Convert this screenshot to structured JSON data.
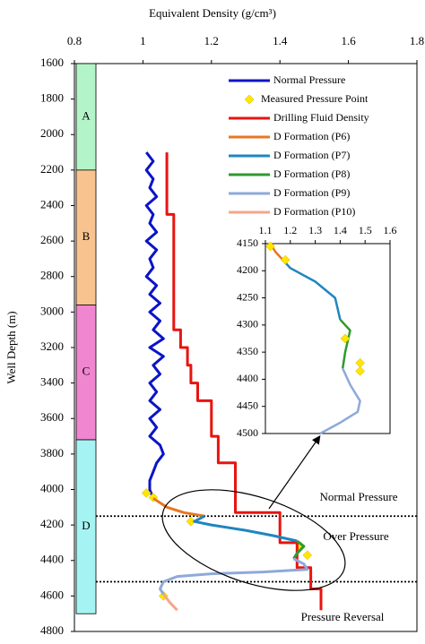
{
  "chart_data": [
    {
      "type": "line",
      "x_label": "Equivalent Density (g/cm³)",
      "y_label": "Well Depth (m)",
      "xlim": [
        0.8,
        1.8
      ],
      "xticks": [
        0.8,
        1,
        1.2,
        1.4,
        1.6,
        1.8
      ],
      "ylim": [
        1600,
        4800
      ],
      "yticks": [
        1600,
        1800,
        2000,
        2200,
        2400,
        2600,
        2800,
        3000,
        3200,
        3400,
        3600,
        3800,
        4000,
        4200,
        4400,
        4600,
        4800
      ],
      "y_inverted": true,
      "formations": [
        {
          "label": "A",
          "top": 1600,
          "bottom": 2200,
          "color": "#b3f5c8"
        },
        {
          "label": "B",
          "top": 2200,
          "bottom": 2960,
          "color": "#f9c38f"
        },
        {
          "label": "C",
          "top": 2960,
          "bottom": 3720,
          "color": "#ef86cf"
        },
        {
          "label": "D",
          "top": 3720,
          "bottom": 4700,
          "color": "#a6f3f3"
        }
      ],
      "boundaries": [
        4150,
        4520
      ],
      "annotations": [
        "Normal Pressure",
        "Over Pressure",
        "Pressure Reversal"
      ],
      "series": [
        {
          "name": "Normal Pressure",
          "color": "#0a14c8",
          "mode": "line",
          "depth": [
            2100,
            2150,
            2200,
            2250,
            2300,
            2350,
            2400,
            2450,
            2500,
            2550,
            2600,
            2650,
            2700,
            2750,
            2800,
            2850,
            2900,
            2950,
            3000,
            3050,
            3100,
            3150,
            3200,
            3250,
            3300,
            3350,
            3400,
            3450,
            3500,
            3550,
            3600,
            3650,
            3700,
            3750,
            3800,
            3850,
            3900,
            3950,
            4000,
            4050
          ],
          "values": [
            1.01,
            1.03,
            1.01,
            1.03,
            1.02,
            1.04,
            1.01,
            1.03,
            1.02,
            1.04,
            1.01,
            1.04,
            1.02,
            1.03,
            1.01,
            1.04,
            1.02,
            1.05,
            1.02,
            1.05,
            1.03,
            1.06,
            1.02,
            1.06,
            1.03,
            1.05,
            1.02,
            1.04,
            1.02,
            1.05,
            1.02,
            1.04,
            1.02,
            1.05,
            1.06,
            1.04,
            1.03,
            1.02,
            1.02,
            1.03
          ]
        },
        {
          "name": "Measured Pressure Point",
          "color": "#ffe600",
          "mode": "markers",
          "depth": [
            4020,
            4045,
            4180,
            4320,
            4370,
            4600
          ],
          "values": [
            1.01,
            1.03,
            1.14,
            1.46,
            1.48,
            1.06
          ]
        },
        {
          "name": "Drilling Fluid Density",
          "color": "#e8140f",
          "mode": "line",
          "depth": [
            2100,
            2450,
            2450,
            3100,
            3100,
            3200,
            3200,
            3300,
            3300,
            3400,
            3400,
            3500,
            3500,
            3700,
            3700,
            3850,
            3850,
            4130,
            4130,
            4300,
            4300,
            4440,
            4440,
            4560,
            4560,
            4680
          ],
          "values": [
            1.07,
            1.07,
            1.09,
            1.09,
            1.11,
            1.11,
            1.13,
            1.13,
            1.14,
            1.14,
            1.16,
            1.16,
            1.2,
            1.2,
            1.22,
            1.22,
            1.27,
            1.27,
            1.4,
            1.4,
            1.45,
            1.45,
            1.49,
            1.49,
            1.52,
            1.52
          ]
        },
        {
          "name": "D Formation (P6)",
          "color": "#e87722",
          "mode": "line",
          "depth": [
            4050,
            4100,
            4130,
            4150
          ],
          "values": [
            1.03,
            1.07,
            1.12,
            1.18
          ]
        },
        {
          "name": "D Formation (P7)",
          "color": "#1f86bf",
          "mode": "line",
          "depth": [
            4150,
            4180,
            4200,
            4230,
            4260,
            4290
          ],
          "values": [
            1.18,
            1.15,
            1.2,
            1.3,
            1.38,
            1.45
          ]
        },
        {
          "name": "D Formation (P8)",
          "color": "#2e9a2e",
          "mode": "line",
          "depth": [
            4290,
            4320,
            4360,
            4390
          ],
          "values": [
            1.45,
            1.47,
            1.45,
            1.44
          ]
        },
        {
          "name": "D Formation (P9)",
          "color": "#8ea9d9",
          "mode": "line",
          "depth": [
            4390,
            4420,
            4450,
            4465,
            4475,
            4490,
            4520,
            4560,
            4590
          ],
          "values": [
            1.44,
            1.47,
            1.48,
            1.35,
            1.2,
            1.1,
            1.06,
            1.05,
            1.06
          ]
        },
        {
          "name": "D Formation (P10)",
          "color": "#f5a58a",
          "mode": "line",
          "depth": [
            4590,
            4640,
            4680
          ],
          "values": [
            1.06,
            1.08,
            1.1
          ]
        }
      ]
    },
    {
      "type": "line",
      "xlim": [
        1.1,
        1.6
      ],
      "xticks": [
        1.1,
        1.2,
        1.3,
        1.4,
        1.5,
        1.6
      ],
      "ylim": [
        4150,
        4500
      ],
      "yticks": [
        4150,
        4200,
        4250,
        4300,
        4350,
        4400,
        4450,
        4500
      ],
      "y_inverted": true,
      "series": [
        {
          "color": "#e87722",
          "mode": "line",
          "depth": [
            4150,
            4165,
            4180
          ],
          "values": [
            1.12,
            1.14,
            1.17
          ]
        },
        {
          "color": "#1f86bf",
          "mode": "line",
          "depth": [
            4180,
            4195,
            4220,
            4250,
            4290
          ],
          "values": [
            1.17,
            1.2,
            1.3,
            1.38,
            1.4
          ]
        },
        {
          "color": "#2e9a2e",
          "mode": "line",
          "depth": [
            4290,
            4310,
            4350,
            4380
          ],
          "values": [
            1.4,
            1.44,
            1.42,
            1.41
          ]
        },
        {
          "color": "#8ea9d9",
          "mode": "line",
          "depth": [
            4380,
            4410,
            4440,
            4460,
            4480,
            4500
          ],
          "values": [
            1.41,
            1.44,
            1.48,
            1.47,
            1.4,
            1.32
          ]
        },
        {
          "color": "#ffe600",
          "mode": "markers",
          "depth": [
            4155,
            4180,
            4325,
            4370,
            4385
          ],
          "values": [
            1.12,
            1.18,
            1.42,
            1.48,
            1.48
          ]
        }
      ]
    }
  ]
}
